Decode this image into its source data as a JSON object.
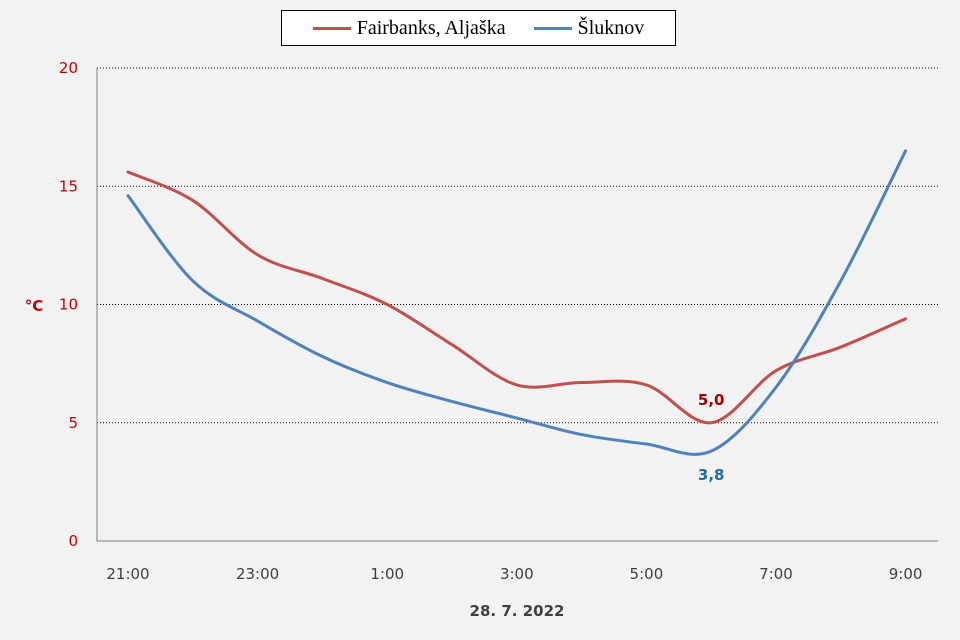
{
  "chart_data": {
    "type": "line",
    "xlabel": "28. 7. 2022",
    "ylabel": "°C",
    "x_ticks": [
      "21:00",
      "23:00",
      "1:00",
      "3:00",
      "5:00",
      "7:00",
      "9:00"
    ],
    "ylim": [
      0,
      20
    ],
    "y_ticks": [
      "0",
      "5",
      "10",
      "15",
      "20"
    ],
    "grid": true,
    "legend_position": "top-center",
    "series": [
      {
        "name": "Fairbanks, Aljaška",
        "color": "#c0504d",
        "x": [
          "21:00",
          "22:00",
          "23:00",
          "0:00",
          "1:00",
          "2:00",
          "3:00",
          "4:00",
          "5:00",
          "6:00",
          "7:00",
          "8:00",
          "9:00"
        ],
        "values": [
          15.6,
          14.4,
          12.1,
          11.1,
          10.0,
          8.3,
          6.6,
          6.7,
          6.6,
          5.0,
          7.2,
          8.2,
          9.4
        ],
        "min_label": "5,0"
      },
      {
        "name": "Šluknov",
        "color": "#4f81bd",
        "x": [
          "21:00",
          "22:00",
          "23:00",
          "0:00",
          "1:00",
          "2:00",
          "3:00",
          "4:00",
          "5:00",
          "6:00",
          "7:00",
          "8:00",
          "9:00"
        ],
        "values": [
          14.6,
          11.0,
          9.3,
          7.8,
          6.7,
          5.9,
          5.2,
          4.5,
          4.1,
          3.8,
          6.5,
          11.0,
          16.5
        ],
        "min_label": "3,8"
      }
    ]
  }
}
